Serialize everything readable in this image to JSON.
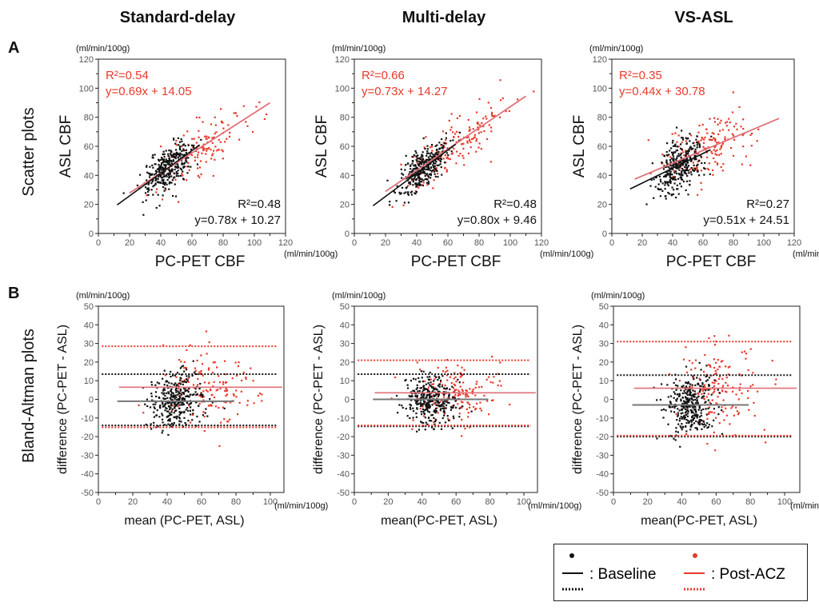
{
  "columns": [
    "Standard-delay",
    "Multi-delay",
    "VS-ASL"
  ],
  "section_labels": {
    "a": "A",
    "b": "B",
    "a_row": "Scatter plots",
    "b_row": "Bland-Altman plots"
  },
  "colors": {
    "baseline": "#111111",
    "post": "#e8392b",
    "post_line": "#e07078",
    "baseline_ba_line": "#777777"
  },
  "unit": "(ml/min/100g)",
  "legend": {
    "baseline": ": Baseline",
    "post": ": Post-ACZ"
  },
  "chart_data": [
    {
      "type": "scatter",
      "panel": "Standard-delay",
      "xlabel": "PC-PET CBF",
      "ylabel": "ASL CBF",
      "xlim": [
        0,
        120
      ],
      "ylim": [
        0,
        120
      ],
      "xticks": [
        0,
        20,
        40,
        60,
        80,
        100,
        120
      ],
      "yticks": [
        0,
        20,
        40,
        60,
        80,
        100,
        120
      ],
      "post": {
        "r2": "R²=0.54",
        "eq": "y=0.69x + 14.05",
        "slope": 0.69,
        "intercept": 14.05,
        "x_range": [
          20,
          110
        ],
        "cloud": {
          "n": 130,
          "x_mean": 68,
          "x_sd": 14,
          "noise_sd": 10
        }
      },
      "baseline": {
        "r2": "R²=0.48",
        "eq": "y=0.78x + 10.27",
        "slope": 0.78,
        "intercept": 10.27,
        "x_range": [
          12,
          65
        ],
        "cloud": {
          "n": 330,
          "x_mean": 44,
          "x_sd": 8,
          "noise_sd": 7
        }
      }
    },
    {
      "type": "scatter",
      "panel": "Multi-delay",
      "xlabel": "PC-PET CBF",
      "ylabel": "ASL CBF",
      "xlim": [
        0,
        120
      ],
      "ylim": [
        0,
        120
      ],
      "xticks": [
        0,
        20,
        40,
        60,
        80,
        100,
        120
      ],
      "yticks": [
        0,
        20,
        40,
        60,
        80,
        100,
        120
      ],
      "post": {
        "r2": "R²=0.66",
        "eq": "y=0.73x + 14.27",
        "slope": 0.73,
        "intercept": 14.27,
        "x_range": [
          20,
          110
        ],
        "cloud": {
          "n": 160,
          "x_mean": 64,
          "x_sd": 16,
          "noise_sd": 9
        }
      },
      "baseline": {
        "r2": "R²=0.48",
        "eq": "y=0.80x + 9.46",
        "slope": 0.8,
        "intercept": 9.46,
        "x_range": [
          12,
          65
        ],
        "cloud": {
          "n": 330,
          "x_mean": 44,
          "x_sd": 8,
          "noise_sd": 7
        }
      }
    },
    {
      "type": "scatter",
      "panel": "VS-ASL",
      "xlabel": "PC-PET CBF",
      "ylabel": "ASL CBF",
      "xlim": [
        0,
        120
      ],
      "ylim": [
        0,
        120
      ],
      "xticks": [
        0,
        20,
        40,
        60,
        80,
        100,
        120
      ],
      "yticks": [
        0,
        20,
        40,
        60,
        80,
        100,
        120
      ],
      "post": {
        "r2": "R²=0.35",
        "eq": "y=0.44x + 30.78",
        "slope": 0.44,
        "intercept": 30.78,
        "x_range": [
          15,
          110
        ],
        "cloud": {
          "n": 160,
          "x_mean": 66,
          "x_sd": 15,
          "noise_sd": 10
        }
      },
      "baseline": {
        "r2": "R²=0.27",
        "eq": "y=0.51x + 24.51",
        "slope": 0.51,
        "intercept": 24.51,
        "x_range": [
          12,
          65
        ],
        "cloud": {
          "n": 330,
          "x_mean": 44,
          "x_sd": 8,
          "noise_sd": 8
        }
      }
    },
    {
      "type": "scatter",
      "panel": "Standard-delay Bland-Altman",
      "xlabel": "mean (PC-PET, ASL)",
      "ylabel": "difference (PC-PET - ASL)",
      "xlim": [
        0,
        100
      ],
      "ylim": [
        -50,
        50
      ],
      "xticks": [
        0,
        20,
        40,
        60,
        80,
        100
      ],
      "yticks": [
        -50,
        -40,
        -30,
        -20,
        -10,
        0,
        10,
        20,
        30,
        40,
        50
      ],
      "baseline": {
        "mean_diff": -1,
        "upper_loa": 13.5,
        "lower_loa": -14,
        "cloud": {
          "n": 330,
          "x_mean": 45,
          "x_sd": 8,
          "noise_sd": 6.5
        }
      },
      "post": {
        "mean_diff": 6.5,
        "upper_loa": 28.5,
        "lower_loa": -15,
        "cloud": {
          "n": 150,
          "x_mean": 62,
          "x_sd": 13,
          "noise_sd": 10
        }
      }
    },
    {
      "type": "scatter",
      "panel": "Multi-delay Bland-Altman",
      "xlabel": "mean(PC-PET, ASL)",
      "ylabel": "difference (PC-PET - ASL)",
      "xlim": [
        0,
        100
      ],
      "ylim": [
        -50,
        50
      ],
      "xticks": [
        0,
        20,
        40,
        60,
        80,
        100
      ],
      "yticks": [
        -50,
        -40,
        -30,
        -20,
        -10,
        0,
        10,
        20,
        30,
        40,
        50
      ],
      "baseline": {
        "mean_diff": 0,
        "upper_loa": 13.5,
        "lower_loa": -14.5,
        "cloud": {
          "n": 330,
          "x_mean": 45,
          "x_sd": 8,
          "noise_sd": 6.5
        }
      },
      "post": {
        "mean_diff": 3.5,
        "upper_loa": 21,
        "lower_loa": -14,
        "cloud": {
          "n": 160,
          "x_mean": 60,
          "x_sd": 13,
          "noise_sd": 8
        }
      }
    },
    {
      "type": "scatter",
      "panel": "VS-ASL Bland-Altman",
      "xlabel": "mean(PC-PET, ASL)",
      "ylabel": "difference (PC-PET - ASL)",
      "xlim": [
        0,
        100
      ],
      "ylim": [
        -50,
        50
      ],
      "xticks": [
        0,
        20,
        40,
        60,
        80,
        100
      ],
      "yticks": [
        -50,
        -40,
        -30,
        -20,
        -10,
        0,
        10,
        20,
        30,
        40,
        50
      ],
      "baseline": {
        "mean_diff": -3,
        "upper_loa": 13,
        "lower_loa": -20,
        "cloud": {
          "n": 330,
          "x_mean": 45,
          "x_sd": 7,
          "noise_sd": 8
        }
      },
      "post": {
        "mean_diff": 6,
        "upper_loa": 31,
        "lower_loa": -19.5,
        "cloud": {
          "n": 160,
          "x_mean": 62,
          "x_sd": 12,
          "noise_sd": 12
        }
      }
    }
  ]
}
